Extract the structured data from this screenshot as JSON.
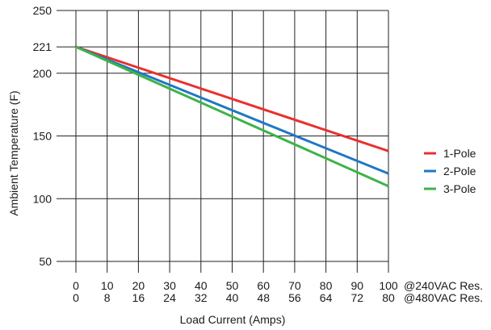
{
  "chart_data": {
    "type": "line",
    "title": "",
    "xlabel": "Load Current (Amps)",
    "ylabel": "Ambient Temperature (F)",
    "xlim": [
      0,
      100
    ],
    "ylim": [
      50,
      250
    ],
    "grid": true,
    "legend_position": "right",
    "y_ticks": [
      50,
      100,
      150,
      200,
      221,
      250
    ],
    "x_ticks_row1": {
      "values": [
        0,
        10,
        20,
        30,
        40,
        50,
        60,
        70,
        80,
        90,
        100
      ],
      "suffix": "@240VAC Res."
    },
    "x_ticks_row2": {
      "values": [
        0,
        8,
        16,
        24,
        32,
        40,
        48,
        56,
        64,
        72,
        80
      ],
      "suffix": "@480VAC Res."
    },
    "series": [
      {
        "name": "1-Pole",
        "color": "#e8312f",
        "x": [
          0,
          100
        ],
        "y": [
          221,
          138
        ]
      },
      {
        "name": "2-Pole",
        "color": "#1f77c4",
        "x": [
          0,
          100
        ],
        "y": [
          221,
          120
        ]
      },
      {
        "name": "3-Pole",
        "color": "#3db34a",
        "x": [
          0,
          100
        ],
        "y": [
          221,
          110
        ]
      }
    ]
  }
}
